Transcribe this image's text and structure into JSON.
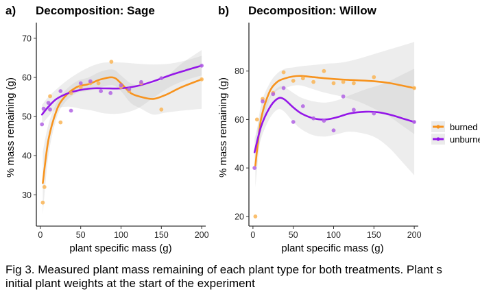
{
  "caption": {
    "line1": "Fig 3. Measured plant mass remaining of each plant type for both treatments. Plant s",
    "line2": "initial plant weights at the start of the experiment"
  },
  "legend": {
    "items": [
      {
        "label": "burned",
        "color": "#f7931e"
      },
      {
        "label": "unburned",
        "color": "#9416e8"
      }
    ]
  },
  "colors": {
    "burned_point": "#f9b455",
    "unburned_point": "#b061e3",
    "band": "#bdbdbd",
    "band_overlap": "#a0a0a0"
  },
  "chart_data": [
    {
      "type": "scatter",
      "panel_letter": "a)",
      "title": "Decomposition: Sage",
      "xlabel": "plant specific mass (g)",
      "ylabel": "% mass remaining (g)",
      "xlim": [
        -5,
        205
      ],
      "ylim": [
        22,
        74
      ],
      "xticks": [
        0,
        50,
        100,
        150,
        200
      ],
      "yticks": [
        30,
        40,
        50,
        60,
        70
      ],
      "grid": false,
      "legend_position": "right",
      "series": [
        {
          "name": "burned",
          "points": [
            [
              3,
              28
            ],
            [
              5,
              32
            ],
            [
              12,
              55.2
            ],
            [
              25,
              48.5
            ],
            [
              38,
              56
            ],
            [
              50,
              57.5
            ],
            [
              62,
              58.5
            ],
            [
              72,
              58.5
            ],
            [
              88,
              64
            ],
            [
              100,
              57.5
            ],
            [
              110,
              56.5
            ],
            [
              125,
              58.5
            ],
            [
              150,
              51.8
            ],
            [
              200,
              59.5
            ]
          ],
          "trend": [
            [
              3,
              33
            ],
            [
              10,
              44
            ],
            [
              20,
              51.5
            ],
            [
              30,
              55
            ],
            [
              45,
              57.5
            ],
            [
              60,
              58.3
            ],
            [
              75,
              59.5
            ],
            [
              90,
              60
            ],
            [
              100,
              58.5
            ],
            [
              112,
              56
            ],
            [
              125,
              55
            ],
            [
              140,
              54.5
            ],
            [
              155,
              55.5
            ],
            [
              175,
              57.5
            ],
            [
              200,
              59.5
            ]
          ],
          "ci_upper": [
            [
              3,
              41
            ],
            [
              10,
              48
            ],
            [
              20,
              53.5
            ],
            [
              30,
              56.5
            ],
            [
              45,
              59
            ],
            [
              60,
              60
            ],
            [
              75,
              61.5
            ],
            [
              90,
              62
            ],
            [
              100,
              60.5
            ],
            [
              112,
              58.5
            ],
            [
              125,
              58
            ],
            [
              140,
              58.5
            ],
            [
              155,
              60
            ],
            [
              175,
              63.5
            ],
            [
              200,
              67
            ]
          ],
          "ci_lower": [
            [
              3,
              25
            ],
            [
              10,
              40
            ],
            [
              20,
              49.5
            ],
            [
              30,
              53.5
            ],
            [
              45,
              56
            ],
            [
              60,
              56.6
            ],
            [
              75,
              57.5
            ],
            [
              90,
              58
            ],
            [
              100,
              56.5
            ],
            [
              112,
              53.5
            ],
            [
              125,
              52
            ],
            [
              140,
              50.5
            ],
            [
              155,
              51
            ],
            [
              175,
              51.5
            ],
            [
              200,
              52
            ]
          ]
        },
        {
          "name": "unburned",
          "points": [
            [
              2,
              48
            ],
            [
              4,
              52
            ],
            [
              10,
              53.5
            ],
            [
              12,
              51.8
            ],
            [
              25,
              56.5
            ],
            [
              38,
              51.5
            ],
            [
              50,
              58.5
            ],
            [
              62,
              59
            ],
            [
              75,
              56.5
            ],
            [
              87,
              56
            ],
            [
              100,
              58
            ],
            [
              110,
              57
            ],
            [
              125,
              58.8
            ],
            [
              150,
              59.8
            ],
            [
              200,
              63
            ]
          ],
          "trend": [
            [
              2,
              50.5
            ],
            [
              10,
              52.5
            ],
            [
              20,
              54.5
            ],
            [
              35,
              56
            ],
            [
              50,
              56.8
            ],
            [
              65,
              57.2
            ],
            [
              80,
              57.2
            ],
            [
              100,
              57.2
            ],
            [
              120,
              57.8
            ],
            [
              140,
              59
            ],
            [
              160,
              60.5
            ],
            [
              180,
              61.8
            ],
            [
              200,
              63
            ]
          ],
          "ci_upper": [
            [
              2,
              53
            ],
            [
              10,
              55
            ],
            [
              20,
              57
            ],
            [
              35,
              59.5
            ],
            [
              50,
              61.5
            ],
            [
              65,
              63
            ],
            [
              80,
              63.8
            ],
            [
              100,
              63.8
            ],
            [
              120,
              63.5
            ],
            [
              140,
              63.3
            ],
            [
              160,
              63.5
            ],
            [
              180,
              64.3
            ],
            [
              200,
              65.5
            ]
          ],
          "ci_lower": [
            [
              2,
              48
            ],
            [
              10,
              50
            ],
            [
              20,
              52
            ],
            [
              35,
              52.5
            ],
            [
              50,
              52
            ],
            [
              65,
              51.5
            ],
            [
              80,
              50.8
            ],
            [
              100,
              50.8
            ],
            [
              120,
              52
            ],
            [
              140,
              54.8
            ],
            [
              160,
              57.5
            ],
            [
              180,
              59.3
            ],
            [
              200,
              60.5
            ]
          ]
        }
      ]
    },
    {
      "type": "scatter",
      "panel_letter": "b)",
      "title": "Decomposition: Willow",
      "xlabel": "plant specific mass (g)",
      "ylabel": "% mass remaining (g)",
      "xlim": [
        -5,
        205
      ],
      "ylim": [
        16,
        100
      ],
      "xticks": [
        0,
        50,
        100,
        150,
        200
      ],
      "yticks": [
        20,
        40,
        60,
        80
      ],
      "grid": false,
      "legend_position": "right",
      "series": [
        {
          "name": "burned",
          "points": [
            [
              3,
              20
            ],
            [
              5,
              60
            ],
            [
              12,
              68.5
            ],
            [
              25,
              71
            ],
            [
              38,
              79.5
            ],
            [
              50,
              76
            ],
            [
              62,
              77
            ],
            [
              75,
              75.5
            ],
            [
              88,
              80
            ],
            [
              100,
              75
            ],
            [
              112,
              75.5
            ],
            [
              125,
              75
            ],
            [
              150,
              77.5
            ],
            [
              200,
              73
            ]
          ],
          "trend": [
            [
              3,
              41
            ],
            [
              10,
              60
            ],
            [
              20,
              71
            ],
            [
              30,
              75.5
            ],
            [
              40,
              77
            ],
            [
              50,
              77.8
            ],
            [
              60,
              78
            ],
            [
              75,
              77.5
            ],
            [
              90,
              77
            ],
            [
              110,
              76.5
            ],
            [
              130,
              76.2
            ],
            [
              150,
              75.8
            ],
            [
              170,
              75
            ],
            [
              185,
              74
            ],
            [
              200,
              73
            ]
          ],
          "ci_upper": [
            [
              3,
              50
            ],
            [
              10,
              66
            ],
            [
              20,
              74.5
            ],
            [
              30,
              79
            ],
            [
              40,
              81
            ],
            [
              50,
              81.5
            ],
            [
              60,
              82
            ],
            [
              75,
              82.5
            ],
            [
              90,
              83
            ],
            [
              110,
              83.5
            ],
            [
              130,
              85
            ],
            [
              150,
              87
            ],
            [
              170,
              89
            ],
            [
              185,
              90.5
            ],
            [
              200,
              92
            ]
          ],
          "ci_lower": [
            [
              3,
              32
            ],
            [
              10,
              54
            ],
            [
              20,
              67.5
            ],
            [
              30,
              72
            ],
            [
              40,
              73
            ],
            [
              50,
              74
            ],
            [
              60,
              74
            ],
            [
              75,
              72.5
            ],
            [
              90,
              71
            ],
            [
              110,
              69.5
            ],
            [
              130,
              67.5
            ],
            [
              150,
              64.5
            ],
            [
              170,
              61
            ],
            [
              185,
              57.5
            ],
            [
              200,
              54
            ]
          ]
        },
        {
          "name": "unburned",
          "points": [
            [
              2,
              40
            ],
            [
              12,
              67.5
            ],
            [
              25,
              70.5
            ],
            [
              38,
              73
            ],
            [
              50,
              59
            ],
            [
              62,
              65.5
            ],
            [
              75,
              60.5
            ],
            [
              88,
              59.5
            ],
            [
              100,
              55.5
            ],
            [
              112,
              69.5
            ],
            [
              125,
              64
            ],
            [
              150,
              62.5
            ],
            [
              200,
              59
            ]
          ],
          "trend": [
            [
              2,
              46.5
            ],
            [
              10,
              57
            ],
            [
              20,
              64.5
            ],
            [
              30,
              68.5
            ],
            [
              38,
              68.5
            ],
            [
              50,
              65
            ],
            [
              60,
              62.5
            ],
            [
              75,
              60.5
            ],
            [
              90,
              60
            ],
            [
              105,
              61
            ],
            [
              120,
              62.5
            ],
            [
              140,
              63.2
            ],
            [
              155,
              63
            ],
            [
              170,
              62
            ],
            [
              185,
              60.5
            ],
            [
              200,
              59
            ]
          ],
          "ci_upper": [
            [
              2,
              52
            ],
            [
              10,
              62
            ],
            [
              20,
              69
            ],
            [
              30,
              73
            ],
            [
              38,
              73.5
            ],
            [
              50,
              71
            ],
            [
              60,
              69
            ],
            [
              75,
              67.5
            ],
            [
              90,
              67
            ],
            [
              105,
              68
            ],
            [
              120,
              70
            ],
            [
              140,
              72.5
            ],
            [
              155,
              74
            ],
            [
              170,
              76
            ],
            [
              185,
              78.5
            ],
            [
              200,
              81
            ]
          ],
          "ci_lower": [
            [
              2,
              41
            ],
            [
              10,
              52
            ],
            [
              20,
              60
            ],
            [
              30,
              64
            ],
            [
              38,
              63.5
            ],
            [
              50,
              59
            ],
            [
              60,
              56
            ],
            [
              75,
              53.5
            ],
            [
              90,
              53
            ],
            [
              105,
              54
            ],
            [
              120,
              55
            ],
            [
              140,
              54
            ],
            [
              155,
              52
            ],
            [
              170,
              48
            ],
            [
              185,
              42.5
            ],
            [
              200,
              37
            ]
          ]
        }
      ]
    }
  ]
}
